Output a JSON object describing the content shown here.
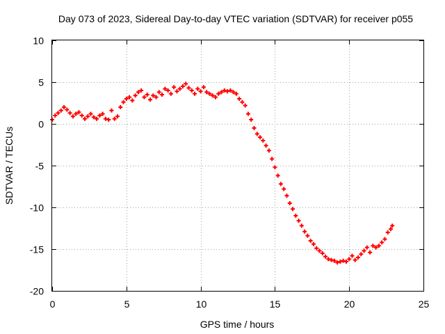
{
  "chart_data": {
    "type": "scatter",
    "title": "Day 073 of 2023, Sidereal Day-to-day VTEC variation (SDTVAR) for receiver p055",
    "xlabel": "GPS time / hours",
    "ylabel": "SDTVAR / TECUs",
    "xlim": [
      0,
      25
    ],
    "ylim": [
      -20,
      10
    ],
    "xticks": [
      0,
      5,
      10,
      15,
      20,
      25
    ],
    "yticks": [
      -20,
      -15,
      -10,
      -5,
      0,
      5,
      10
    ],
    "xtick_labels": [
      "0",
      "5",
      "10",
      "15",
      "20",
      "25"
    ],
    "ytick_labels": [
      "-20",
      "-15",
      "-10",
      "-5",
      "0",
      "5",
      "10"
    ],
    "grid": true,
    "marker": "+",
    "series": [
      {
        "name": "SDTVAR",
        "color": "#ff0000",
        "x": [
          0,
          0.2,
          0.4,
          0.6,
          0.8,
          1.0,
          1.2,
          1.4,
          1.6,
          1.8,
          2.0,
          2.2,
          2.4,
          2.6,
          2.8,
          3.0,
          3.2,
          3.4,
          3.6,
          3.8,
          4.0,
          4.2,
          4.4,
          4.6,
          4.8,
          5.0,
          5.2,
          5.4,
          5.6,
          5.8,
          6.0,
          6.2,
          6.4,
          6.6,
          6.8,
          7.0,
          7.2,
          7.4,
          7.6,
          7.8,
          8.0,
          8.2,
          8.4,
          8.6,
          8.8,
          9.0,
          9.2,
          9.4,
          9.6,
          9.8,
          10.0,
          10.2,
          10.4,
          10.6,
          10.8,
          11.0,
          11.2,
          11.4,
          11.6,
          11.8,
          12.0,
          12.2,
          12.4,
          12.6,
          12.8,
          13.0,
          13.2,
          13.4,
          13.6,
          13.8,
          14.0,
          14.2,
          14.4,
          14.6,
          14.8,
          15.0,
          15.2,
          15.4,
          15.6,
          15.8,
          16.0,
          16.2,
          16.4,
          16.6,
          16.8,
          17.0,
          17.2,
          17.4,
          17.6,
          17.8,
          18.0,
          18.2,
          18.4,
          18.6,
          18.8,
          19.0,
          19.2,
          19.4,
          19.6,
          19.8,
          20.0,
          20.2,
          20.4,
          20.6,
          20.8,
          21.0,
          21.2,
          21.4,
          21.6,
          21.8,
          22.0,
          22.2,
          22.4,
          22.6,
          22.8,
          22.9
        ],
        "y": [
          0.5,
          1.0,
          1.3,
          1.6,
          2.0,
          1.7,
          1.3,
          0.9,
          1.2,
          1.4,
          1.0,
          0.6,
          0.9,
          1.2,
          0.8,
          0.6,
          1.0,
          1.2,
          0.6,
          0.5,
          1.6,
          0.6,
          0.9,
          2.0,
          2.6,
          3.0,
          3.2,
          2.8,
          3.4,
          3.8,
          4.0,
          3.2,
          3.5,
          2.9,
          3.4,
          3.2,
          3.8,
          3.5,
          4.2,
          4.0,
          3.6,
          4.4,
          3.9,
          4.2,
          4.5,
          4.8,
          4.3,
          4.0,
          3.6,
          4.2,
          3.9,
          4.4,
          3.8,
          3.6,
          3.4,
          3.2,
          3.6,
          3.8,
          4.0,
          3.9,
          4.0,
          3.8,
          3.6,
          3.0,
          2.6,
          2.2,
          1.2,
          0.5,
          -0.5,
          -1.2,
          -1.6,
          -2.0,
          -2.6,
          -3.2,
          -4.2,
          -5.2,
          -6.2,
          -7.2,
          -7.8,
          -8.6,
          -9.5,
          -10.2,
          -11.0,
          -11.6,
          -12.2,
          -12.9,
          -13.4,
          -14.0,
          -14.4,
          -14.9,
          -15.2,
          -15.5,
          -15.9,
          -16.2,
          -16.3,
          -16.4,
          -16.6,
          -16.5,
          -16.4,
          -16.5,
          -16.2,
          -15.8,
          -16.3,
          -16.0,
          -15.6,
          -15.2,
          -14.8,
          -15.4,
          -14.6,
          -14.8,
          -14.6,
          -14.2,
          -13.8,
          -13.0,
          -12.6,
          -12.2
        ]
      }
    ]
  }
}
